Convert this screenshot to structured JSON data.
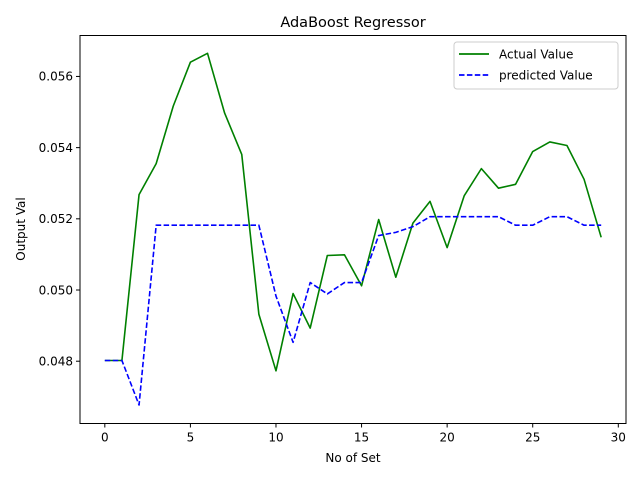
{
  "chart_data": {
    "type": "line",
    "title": "AdaBoost Regressor",
    "xlabel": "No of Set",
    "ylabel": "Output Val",
    "xlim": [
      -1.45,
      30.45
    ],
    "ylim": [
      0.04625,
      0.05715
    ],
    "xticks": [
      0,
      5,
      10,
      15,
      20,
      25,
      30
    ],
    "yticks": [
      0.048,
      0.05,
      0.052,
      0.054,
      0.056
    ],
    "ytick_labels": [
      "0.048",
      "0.050",
      "0.052",
      "0.054",
      "0.056"
    ],
    "grid": false,
    "legend_position": "upper right",
    "x": [
      0,
      1,
      2,
      3,
      4,
      5,
      6,
      7,
      8,
      9,
      10,
      11,
      12,
      13,
      14,
      15,
      16,
      17,
      18,
      19,
      20,
      21,
      22,
      23,
      24,
      25,
      26,
      27,
      28,
      29
    ],
    "series": [
      {
        "name": "Actual Value",
        "color": "#008000",
        "style": "solid",
        "values": [
          0.04802,
          0.04802,
          0.05268,
          0.05355,
          0.05517,
          0.0564,
          0.05665,
          0.05497,
          0.05381,
          0.04932,
          0.04773,
          0.0499,
          0.04893,
          0.05097,
          0.05099,
          0.05012,
          0.05198,
          0.05036,
          0.05188,
          0.05249,
          0.05119,
          0.05265,
          0.05341,
          0.05286,
          0.05297,
          0.05389,
          0.05416,
          0.05406,
          0.05311,
          0.05148
        ]
      },
      {
        "name": "predicted Value",
        "color": "#0000ff",
        "style": "dashed",
        "values": [
          0.04802,
          0.04802,
          0.04677,
          0.05182,
          0.05182,
          0.05182,
          0.05182,
          0.05182,
          0.05182,
          0.05182,
          0.04983,
          0.04853,
          0.05021,
          0.04989,
          0.05021,
          0.05021,
          0.05153,
          0.05162,
          0.05178,
          0.05206,
          0.05206,
          0.05206,
          0.05206,
          0.05206,
          0.05182,
          0.05182,
          0.05206,
          0.05206,
          0.05182,
          0.05182
        ]
      }
    ]
  }
}
